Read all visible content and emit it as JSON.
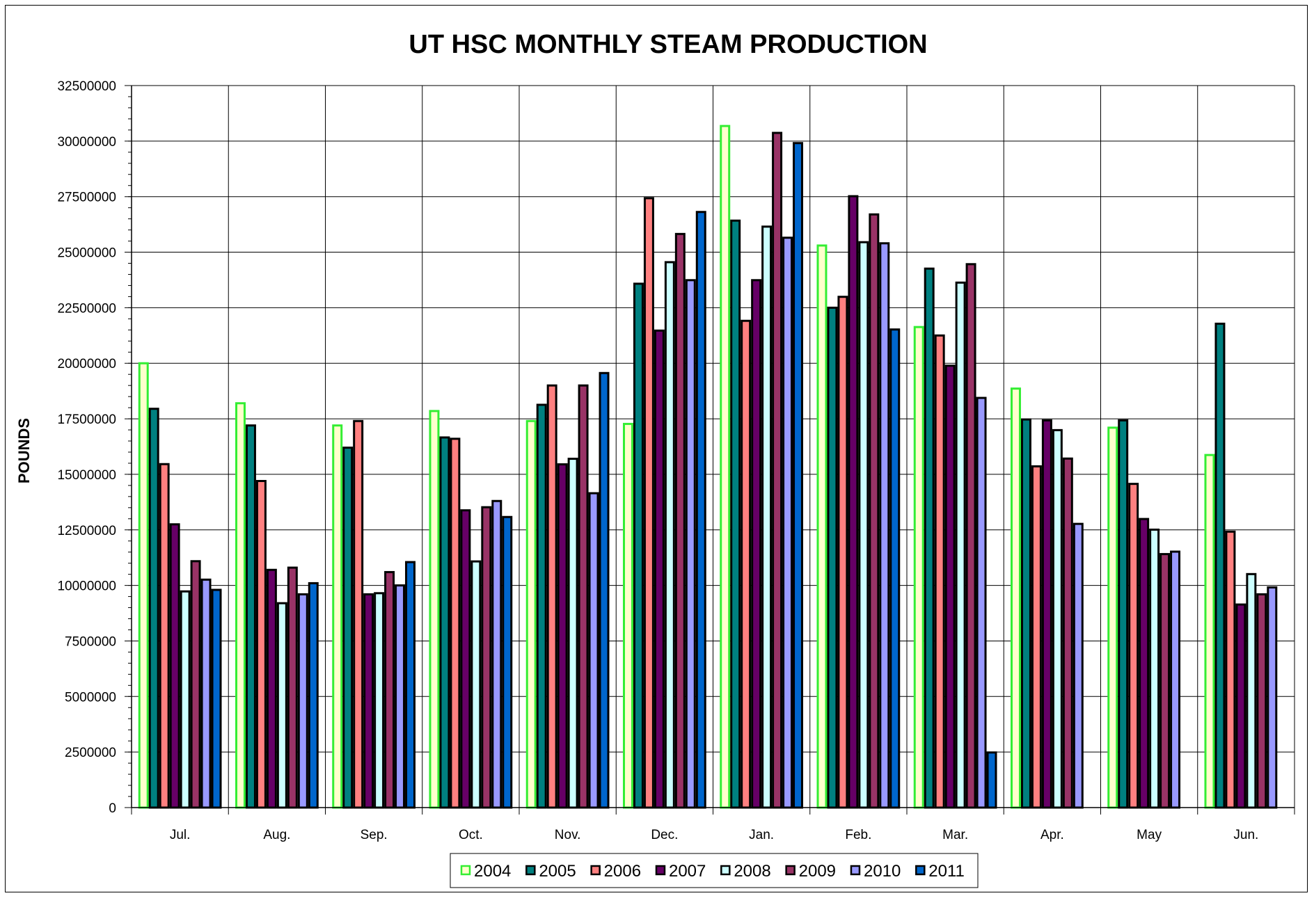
{
  "chart_data": {
    "type": "bar",
    "title": "UT HSC MONTHLY STEAM PRODUCTION",
    "xlabel": "",
    "ylabel": "POUNDS",
    "ylim": [
      0,
      32500000
    ],
    "ytick_step": 2500000,
    "yticks": [
      "0",
      "2500000",
      "5000000",
      "7500000",
      "10000000",
      "12500000",
      "15000000",
      "17500000",
      "20000000",
      "22500000",
      "25000000",
      "27500000",
      "30000000",
      "32500000"
    ],
    "grid": true,
    "legend_position": "bottom",
    "categories": [
      "Jul.",
      "Aug.",
      "Sep.",
      "Oct.",
      "Nov.",
      "Dec.",
      "Jan.",
      "Feb.",
      "Mar.",
      "Apr.",
      "May",
      "Jun."
    ],
    "series": [
      {
        "name": "2004",
        "color": "#FFFFCC",
        "border": "#33EE33",
        "values": [
          20000000,
          18200000,
          17200000,
          17850000,
          17400000,
          17270000,
          30680000,
          25300000,
          21630000,
          18860000,
          17100000,
          15870000
        ]
      },
      {
        "name": "2005",
        "color": "#008080",
        "border": "#000000",
        "values": [
          17950000,
          17200000,
          16200000,
          16660000,
          18130000,
          23580000,
          26420000,
          22500000,
          24260000,
          17470000,
          17430000,
          21780000
        ]
      },
      {
        "name": "2006",
        "color": "#FF8080",
        "border": "#000000",
        "values": [
          15460000,
          14700000,
          17400000,
          16600000,
          19000000,
          27430000,
          21910000,
          22990000,
          21250000,
          15360000,
          14570000,
          12420000
        ]
      },
      {
        "name": "2007",
        "color": "#660066",
        "border": "#000000",
        "values": [
          12750000,
          10700000,
          9600000,
          13380000,
          15450000,
          21470000,
          23740000,
          27520000,
          19890000,
          17430000,
          12990000,
          9140000
        ]
      },
      {
        "name": "2008",
        "color": "#CCFFFF",
        "border": "#000000",
        "values": [
          9730000,
          9200000,
          9650000,
          11080000,
          15700000,
          24550000,
          26150000,
          25450000,
          23630000,
          16990000,
          12510000,
          10510000
        ]
      },
      {
        "name": "2009",
        "color": "#993366",
        "border": "#000000",
        "values": [
          11090000,
          10800000,
          10600000,
          13520000,
          19000000,
          25820000,
          30370000,
          26700000,
          24460000,
          15710000,
          11410000,
          9600000
        ]
      },
      {
        "name": "2010",
        "color": "#9999FF",
        "border": "#000000",
        "values": [
          10260000,
          9600000,
          10000000,
          13800000,
          14150000,
          23740000,
          25650000,
          25400000,
          18440000,
          12770000,
          11520000,
          9910000
        ]
      },
      {
        "name": "2011",
        "color": "#0066CC",
        "border": "#000000",
        "values": [
          9800000,
          10100000,
          11050000,
          13080000,
          19560000,
          26810000,
          29910000,
          21520000,
          2480000,
          null,
          null,
          null
        ]
      }
    ]
  }
}
